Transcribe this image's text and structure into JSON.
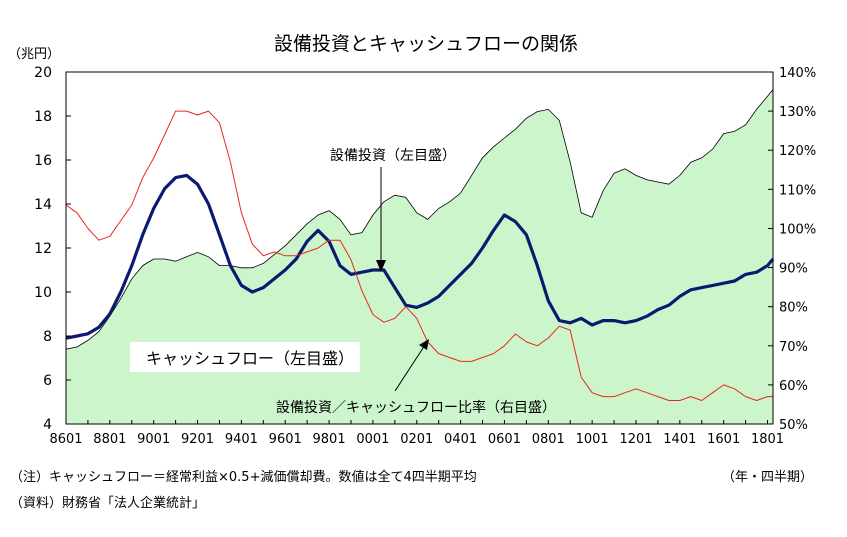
{
  "chart_data": {
    "type": "line",
    "title": "設備投資とキャッシュフローの関係",
    "left_axis_unit": "（兆円）",
    "x_tick_labels": [
      "8601",
      "8801",
      "9001",
      "9201",
      "9401",
      "9601",
      "9801",
      "0001",
      "0201",
      "0401",
      "0601",
      "0801",
      "1001",
      "1201",
      "1401",
      "1601",
      "1801"
    ],
    "x_start": "8601",
    "x_end": "1803",
    "y_left": {
      "min": 4,
      "max": 20,
      "step": 2,
      "ticks": [
        "4",
        "6",
        "8",
        "10",
        "12",
        "14",
        "16",
        "18",
        "20"
      ]
    },
    "y_right": {
      "min": 50,
      "max": 140,
      "step": 10,
      "ticks": [
        "50%",
        "60%",
        "70%",
        "80%",
        "90%",
        "100%",
        "110%",
        "120%",
        "130%",
        "140%"
      ]
    },
    "grid": false,
    "series": [
      {
        "name": "設備投資（左目盛）",
        "kind": "area",
        "axis": "left",
        "fill": "#ccf5cc",
        "stroke": "#000000",
        "points": [
          [
            1986.0,
            7.4
          ],
          [
            1986.5,
            7.5
          ],
          [
            1987.0,
            7.8
          ],
          [
            1987.5,
            8.2
          ],
          [
            1988.0,
            8.9
          ],
          [
            1988.5,
            9.7
          ],
          [
            1989.0,
            10.6
          ],
          [
            1989.5,
            11.2
          ],
          [
            1990.0,
            11.5
          ],
          [
            1990.5,
            11.5
          ],
          [
            1991.0,
            11.4
          ],
          [
            1991.5,
            11.6
          ],
          [
            1992.0,
            11.8
          ],
          [
            1992.5,
            11.6
          ],
          [
            1993.0,
            11.2
          ],
          [
            1993.5,
            11.2
          ],
          [
            1994.0,
            11.1
          ],
          [
            1994.5,
            11.1
          ],
          [
            1995.0,
            11.3
          ],
          [
            1995.5,
            11.7
          ],
          [
            1996.0,
            12.1
          ],
          [
            1996.5,
            12.6
          ],
          [
            1997.0,
            13.1
          ],
          [
            1997.5,
            13.5
          ],
          [
            1998.0,
            13.7
          ],
          [
            1998.5,
            13.3
          ],
          [
            1999.0,
            12.6
          ],
          [
            1999.5,
            12.7
          ],
          [
            2000.0,
            13.5
          ],
          [
            2000.5,
            14.1
          ],
          [
            2001.0,
            14.4
          ],
          [
            2001.5,
            14.3
          ],
          [
            2002.0,
            13.6
          ],
          [
            2002.5,
            13.3
          ],
          [
            2003.0,
            13.8
          ],
          [
            2003.5,
            14.1
          ],
          [
            2004.0,
            14.5
          ],
          [
            2004.5,
            15.3
          ],
          [
            2005.0,
            16.1
          ],
          [
            2005.5,
            16.6
          ],
          [
            2006.0,
            17.0
          ],
          [
            2006.5,
            17.4
          ],
          [
            2007.0,
            17.9
          ],
          [
            2007.5,
            18.2
          ],
          [
            2008.0,
            18.3
          ],
          [
            2008.5,
            17.8
          ],
          [
            2009.0,
            15.9
          ],
          [
            2009.5,
            13.6
          ],
          [
            2010.0,
            13.4
          ],
          [
            2010.5,
            14.6
          ],
          [
            2011.0,
            15.4
          ],
          [
            2011.5,
            15.6
          ],
          [
            2012.0,
            15.3
          ],
          [
            2012.5,
            15.1
          ],
          [
            2013.0,
            15.0
          ],
          [
            2013.5,
            14.9
          ],
          [
            2014.0,
            15.3
          ],
          [
            2014.5,
            15.9
          ],
          [
            2015.0,
            16.1
          ],
          [
            2015.5,
            16.5
          ],
          [
            2016.0,
            17.2
          ],
          [
            2016.5,
            17.3
          ],
          [
            2017.0,
            17.6
          ],
          [
            2017.5,
            18.3
          ],
          [
            2018.0,
            18.9
          ],
          [
            2018.25,
            19.2
          ]
        ]
      },
      {
        "name": "キャッシュフロー（左目盛）",
        "kind": "line",
        "axis": "left",
        "color": "#0a1a6e",
        "points": [
          [
            1986.0,
            7.9
          ],
          [
            1986.5,
            8.0
          ],
          [
            1987.0,
            8.1
          ],
          [
            1987.5,
            8.4
          ],
          [
            1988.0,
            9.0
          ],
          [
            1988.5,
            10.0
          ],
          [
            1989.0,
            11.2
          ],
          [
            1989.5,
            12.6
          ],
          [
            1990.0,
            13.8
          ],
          [
            1990.5,
            14.7
          ],
          [
            1991.0,
            15.2
          ],
          [
            1991.5,
            15.3
          ],
          [
            1992.0,
            14.9
          ],
          [
            1992.5,
            14.0
          ],
          [
            1993.0,
            12.6
          ],
          [
            1993.5,
            11.2
          ],
          [
            1994.0,
            10.3
          ],
          [
            1994.5,
            10.0
          ],
          [
            1995.0,
            10.2
          ],
          [
            1995.5,
            10.6
          ],
          [
            1996.0,
            11.0
          ],
          [
            1996.5,
            11.5
          ],
          [
            1997.0,
            12.3
          ],
          [
            1997.5,
            12.8
          ],
          [
            1998.0,
            12.3
          ],
          [
            1998.5,
            11.2
          ],
          [
            1999.0,
            10.8
          ],
          [
            1999.5,
            10.9
          ],
          [
            2000.0,
            11.0
          ],
          [
            2000.5,
            11.0
          ],
          [
            2001.0,
            10.2
          ],
          [
            2001.5,
            9.4
          ],
          [
            2002.0,
            9.3
          ],
          [
            2002.5,
            9.5
          ],
          [
            2003.0,
            9.8
          ],
          [
            2003.5,
            10.3
          ],
          [
            2004.0,
            10.8
          ],
          [
            2004.5,
            11.3
          ],
          [
            2005.0,
            12.0
          ],
          [
            2005.5,
            12.8
          ],
          [
            2006.0,
            13.5
          ],
          [
            2006.5,
            13.2
          ],
          [
            2007.0,
            12.6
          ],
          [
            2007.5,
            11.2
          ],
          [
            2008.0,
            9.6
          ],
          [
            2008.5,
            8.7
          ],
          [
            2009.0,
            8.6
          ],
          [
            2009.5,
            8.8
          ],
          [
            2010.0,
            8.5
          ],
          [
            2010.5,
            8.7
          ],
          [
            2011.0,
            8.7
          ],
          [
            2011.5,
            8.6
          ],
          [
            2012.0,
            8.7
          ],
          [
            2012.5,
            8.9
          ],
          [
            2013.0,
            9.2
          ],
          [
            2013.5,
            9.4
          ],
          [
            2014.0,
            9.8
          ],
          [
            2014.5,
            10.1
          ],
          [
            2015.0,
            10.2
          ],
          [
            2015.5,
            10.3
          ],
          [
            2016.0,
            10.4
          ],
          [
            2016.5,
            10.5
          ],
          [
            2017.0,
            10.8
          ],
          [
            2017.5,
            10.9
          ],
          [
            2018.0,
            11.2
          ],
          [
            2018.25,
            11.5
          ]
        ]
      },
      {
        "name": "設備投資／キャッシュフロー比率（右目盛）",
        "kind": "line",
        "axis": "right",
        "color": "#e8281e",
        "points": [
          [
            1986.0,
            106.0
          ],
          [
            1986.5,
            104.0
          ],
          [
            1987.0,
            100.0
          ],
          [
            1987.5,
            97.0
          ],
          [
            1988.0,
            98.0
          ],
          [
            1988.5,
            102.0
          ],
          [
            1989.0,
            106.0
          ],
          [
            1989.5,
            113.0
          ],
          [
            1990.0,
            118.0
          ],
          [
            1990.5,
            124.0
          ],
          [
            1991.0,
            130.0
          ],
          [
            1991.5,
            130.0
          ],
          [
            1992.0,
            129.0
          ],
          [
            1992.5,
            130.0
          ],
          [
            1993.0,
            127.0
          ],
          [
            1993.5,
            117.0
          ],
          [
            1994.0,
            104.0
          ],
          [
            1994.5,
            96.0
          ],
          [
            1995.0,
            93.0
          ],
          [
            1995.5,
            94.0
          ],
          [
            1996.0,
            93.0
          ],
          [
            1996.5,
            93.0
          ],
          [
            1997.0,
            94.0
          ],
          [
            1997.5,
            95.0
          ],
          [
            1998.0,
            97.0
          ],
          [
            1998.5,
            97.0
          ],
          [
            1999.0,
            92.0
          ],
          [
            1999.5,
            84.0
          ],
          [
            2000.0,
            78.0
          ],
          [
            2000.5,
            76.0
          ],
          [
            2001.0,
            77.0
          ],
          [
            2001.5,
            80.0
          ],
          [
            2002.0,
            77.0
          ],
          [
            2002.5,
            71.0
          ],
          [
            2003.0,
            68.0
          ],
          [
            2003.5,
            67.0
          ],
          [
            2004.0,
            66.0
          ],
          [
            2004.5,
            66.0
          ],
          [
            2005.0,
            67.0
          ],
          [
            2005.5,
            68.0
          ],
          [
            2006.0,
            70.0
          ],
          [
            2006.5,
            73.0
          ],
          [
            2007.0,
            71.0
          ],
          [
            2007.5,
            70.0
          ],
          [
            2008.0,
            72.0
          ],
          [
            2008.5,
            75.0
          ],
          [
            2009.0,
            74.0
          ],
          [
            2009.5,
            62.0
          ],
          [
            2010.0,
            58.0
          ],
          [
            2010.5,
            57.0
          ],
          [
            2011.0,
            57.0
          ],
          [
            2011.5,
            58.0
          ],
          [
            2012.0,
            59.0
          ],
          [
            2012.5,
            58.0
          ],
          [
            2013.0,
            57.0
          ],
          [
            2013.5,
            56.0
          ],
          [
            2014.0,
            56.0
          ],
          [
            2014.5,
            57.0
          ],
          [
            2015.0,
            56.0
          ],
          [
            2015.5,
            58.0
          ],
          [
            2016.0,
            60.0
          ],
          [
            2016.5,
            59.0
          ],
          [
            2017.0,
            57.0
          ],
          [
            2017.5,
            56.0
          ],
          [
            2018.0,
            57.0
          ],
          [
            2018.25,
            57.0
          ]
        ]
      }
    ],
    "annotations": [
      "設備投資（左目盛）",
      "キャッシュフロー（左目盛）",
      "設備投資／キャッシュフロー比率（右目盛）"
    ]
  },
  "notes": {
    "note1": "（注）キャッシュフロー＝経常利益×0.5+減価償却費。数値は全て4四半期平均",
    "period_unit": "（年・四半期）",
    "source": "（資料）財務省「法人企業統計」"
  }
}
